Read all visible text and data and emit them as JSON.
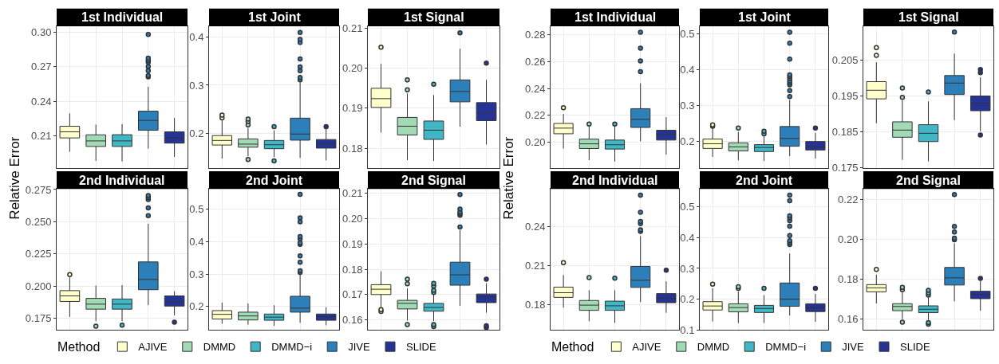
{
  "chart_data": [
    {
      "type": "box",
      "title": "1st Individual",
      "ylabel": "Relative Error",
      "legend_title": "Method",
      "legend": "bottom",
      "grid": true,
      "tick_labels": "y",
      "categories": [
        null,
        null,
        null,
        null,
        null
      ],
      "ylim": [
        0.182,
        0.305
      ],
      "yticks": [
        0.21,
        0.24,
        0.27,
        {
          "value": 0.3,
          "label": "0.30"
        }
      ],
      "series": [
        {
          "name": "AJIVE",
          "color": "#ffffcc",
          "boxes": [
            {
              "low": 0.1962,
              "q1": 0.2082,
              "median": 0.2135,
              "q3": 0.2183,
              "high": 0.2295
            },
            null,
            null,
            null,
            null
          ]
        },
        {
          "name": "DMMD",
          "color": "#a1dab4",
          "boxes": [
            null,
            {
              "low": 0.1883,
              "q1": 0.2008,
              "median": 0.2056,
              "q3": 0.2109,
              "high": 0.2197
            },
            null,
            null,
            null
          ]
        },
        {
          "name": "DMMD−i",
          "color": "#41b6c4",
          "boxes": [
            null,
            null,
            {
              "low": 0.1878,
              "q1": 0.2008,
              "median": 0.2056,
              "q3": 0.211,
              "high": 0.2202
            },
            null,
            null
          ]
        },
        {
          "name": "JIVE",
          "color": "#2c7fb8",
          "boxes": [
            null,
            null,
            null,
            {
              "low": 0.1989,
              "q1": 0.2149,
              "median": 0.2234,
              "q3": 0.2314,
              "high": 0.2526,
              "outliers": [
                0.298,
                0.2774,
                0.2755,
                0.2739,
                0.2702,
                0.2665,
                0.2622,
                0.2612
              ]
            },
            null
          ]
        },
        {
          "name": "SLIDE",
          "color": "#253494",
          "boxes": [
            null,
            null,
            null,
            null,
            {
              "low": 0.1917,
              "q1": 0.2037,
              "median": 0.2082,
              "q3": 0.2135,
              "high": 0.2255
            }
          ]
        }
      ]
    },
    {
      "type": "box",
      "title": "1st Joint",
      "grid": true,
      "tick_labels": "y",
      "categories": [
        null,
        null,
        null,
        null,
        null
      ],
      "ylim": [
        0.128,
        0.422
      ],
      "yticks": [
        0.2,
        0.3,
        0.4
      ],
      "series": [
        {
          "color": "#ffffcc",
          "boxes": [
            {
              "low": 0.148,
              "q1": 0.1759,
              "median": 0.1854,
              "q3": 0.1955,
              "high": 0.227,
              "outliers": [
                0.238,
                0.232
              ]
            },
            null,
            null,
            null,
            null
          ]
        },
        {
          "color": "#a1dab4",
          "boxes": [
            null,
            {
              "low": 0.1524,
              "q1": 0.1714,
              "median": 0.1778,
              "q3": 0.1886,
              "high": 0.2114,
              "outliers": [
                0.2298,
                0.2247,
                0.2178,
                0.146
              ]
            },
            null,
            null,
            null
          ]
        },
        {
          "color": "#41b6c4",
          "boxes": [
            null,
            null,
            {
              "low": 0.1511,
              "q1": 0.1683,
              "median": 0.1765,
              "q3": 0.1854,
              "high": 0.2063,
              "outliers": [
                0.2139,
                0.1428
              ]
            },
            null,
            null
          ]
        },
        {
          "color": "#2c7fb8",
          "boxes": [
            null,
            null,
            null,
            {
              "low": 0.1492,
              "q1": 0.186,
              "median": 0.1987,
              "q3": 0.2317,
              "high": 0.306,
              "outliers": [
                0.4095,
                0.395,
                0.3886,
                0.3543,
                0.3378,
                0.3302,
                0.3162,
                0.3111
              ]
            },
            null
          ]
        },
        {
          "color": "#253494",
          "boxes": [
            null,
            null,
            null,
            null,
            {
              "low": 0.1441,
              "q1": 0.1695,
              "median": 0.179,
              "q3": 0.1873,
              "high": 0.2095,
              "outliers": [
                0.2139
              ]
            }
          ]
        }
      ]
    },
    {
      "type": "box",
      "title": "1st Signal",
      "grid": true,
      "tick_labels": "y",
      "categories": [
        null,
        null,
        null,
        null,
        null
      ],
      "ylim": [
        0.175,
        0.2105
      ],
      "yticks": [
        0.18,
        0.19,
        {
          "value": 0.2,
          "label": "0.20"
        },
        0.21
      ],
      "series": [
        {
          "color": "#ffffcc",
          "boxes": [
            {
              "low": 0.1839,
              "q1": 0.1902,
              "median": 0.1924,
              "q3": 0.195,
              "high": 0.2011,
              "outliers": [
                0.2053
              ]
            },
            null,
            null,
            null,
            null
          ]
        },
        {
          "color": "#a1dab4",
          "boxes": [
            null,
            {
              "low": 0.177,
              "q1": 0.1833,
              "median": 0.1855,
              "q3": 0.1877,
              "high": 0.1937,
              "outliers": [
                0.1971,
                0.1946
              ]
            },
            null,
            null,
            null
          ]
        },
        {
          "color": "#41b6c4",
          "boxes": [
            null,
            null,
            {
              "low": 0.1768,
              "q1": 0.1822,
              "median": 0.1845,
              "q3": 0.1868,
              "high": 0.1933,
              "outliers": [
                0.196
              ]
            },
            null,
            null
          ]
        },
        {
          "color": "#2c7fb8",
          "boxes": [
            null,
            null,
            null,
            {
              "low": 0.1854,
              "q1": 0.1916,
              "median": 0.1942,
              "q3": 0.1971,
              "high": 0.2049,
              "outliers": [
                0.2089
              ]
            },
            null
          ]
        },
        {
          "color": "#253494",
          "boxes": [
            null,
            null,
            null,
            null,
            {
              "low": 0.1809,
              "q1": 0.1869,
              "median": 0.1888,
              "q3": 0.1914,
              "high": 0.1971,
              "outliers": [
                0.2013
              ]
            }
          ]
        }
      ]
    },
    {
      "type": "box",
      "title": "2nd Individual",
      "grid": true,
      "tick_labels": "y",
      "categories": [
        null,
        null,
        null,
        null,
        null
      ],
      "ylim": [
        0.166,
        0.2755
      ],
      "yticks": [
        0.175,
        {
          "value": 0.2,
          "label": "0.200"
        },
        0.225,
        {
          "value": 0.25,
          "label": "0.250"
        },
        0.275
      ],
      "series": [
        {
          "color": "#ffffcc",
          "boxes": [
            {
              "low": 0.1761,
              "q1": 0.1881,
              "median": 0.1924,
              "q3": 0.1965,
              "high": 0.2068,
              "outliers": [
                0.209
              ]
            },
            null,
            null,
            null,
            null
          ]
        },
        {
          "color": "#a1dab4",
          "boxes": [
            null,
            {
              "low": 0.1728,
              "q1": 0.1821,
              "median": 0.186,
              "q3": 0.1905,
              "high": 0.2004,
              "outliers": [
                0.1689
              ]
            },
            null,
            null,
            null
          ]
        },
        {
          "color": "#41b6c4",
          "boxes": [
            null,
            null,
            {
              "low": 0.1728,
              "q1": 0.1821,
              "median": 0.186,
              "q3": 0.19,
              "high": 0.2008,
              "outliers": [
                0.1696
              ]
            },
            null,
            null
          ]
        },
        {
          "color": "#2c7fb8",
          "boxes": [
            null,
            null,
            null,
            {
              "low": 0.1852,
              "q1": 0.1972,
              "median": 0.2052,
              "q3": 0.2188,
              "high": 0.2484,
              "outliers": [
                0.2704,
                0.2688,
                0.2673,
                0.2608,
                0.2548
              ]
            },
            null
          ]
        },
        {
          "color": "#253494",
          "boxes": [
            null,
            null,
            null,
            null,
            {
              "low": 0.1773,
              "q1": 0.1845,
              "median": 0.1876,
              "q3": 0.1924,
              "high": 0.196,
              "outliers": [
                0.172
              ]
            }
          ]
        }
      ]
    },
    {
      "type": "box",
      "title": "2nd Joint",
      "grid": true,
      "tick_labels": "y",
      "categories": [
        null,
        null,
        null,
        null,
        null
      ],
      "ylim": [
        0.128,
        0.562
      ],
      "yticks": [
        0.2,
        0.3,
        0.4,
        0.5
      ],
      "series": [
        {
          "color": "#ffffcc",
          "boxes": [
            {
              "low": 0.1471,
              "q1": 0.1615,
              "median": 0.1759,
              "q3": 0.1874,
              "high": 0.2123
            },
            null,
            null,
            null,
            null
          ]
        },
        {
          "color": "#a1dab4",
          "boxes": [
            null,
            {
              "low": 0.1442,
              "q1": 0.1586,
              "median": 0.171,
              "q3": 0.1826,
              "high": 0.2094
            },
            null,
            null,
            null
          ]
        },
        {
          "color": "#41b6c4",
          "boxes": [
            null,
            null,
            {
              "low": 0.1404,
              "q1": 0.1576,
              "median": 0.1672,
              "q3": 0.1768,
              "high": 0.2037
            },
            null,
            null
          ]
        },
        {
          "color": "#2c7fb8",
          "boxes": [
            null,
            null,
            null,
            {
              "low": 0.15,
              "q1": 0.1826,
              "median": 0.195,
              "q3": 0.2315,
              "high": 0.2977,
              "outliers": [
                0.5451,
                0.4731,
                0.4607,
                0.4156,
                0.4089,
                0.3964,
                0.3916,
                0.3561,
                0.336,
                0.3101,
                0.3053
              ]
            },
            null
          ]
        },
        {
          "color": "#253494",
          "boxes": [
            null,
            null,
            null,
            null,
            {
              "low": 0.1423,
              "q1": 0.1576,
              "median": 0.1682,
              "q3": 0.1768,
              "high": 0.1979
            }
          ]
        }
      ]
    },
    {
      "type": "box",
      "title": "2nd Signal",
      "grid": true,
      "tick_labels": "y",
      "categories": [
        null,
        null,
        null,
        null,
        null
      ],
      "ylim": [
        0.156,
        0.2118
      ],
      "yticks": [
        0.16,
        0.17,
        0.18,
        0.19,
        {
          "value": 0.2,
          "label": "0.20"
        },
        0.21
      ],
      "series": [
        {
          "color": "#ffffcc",
          "boxes": [
            {
              "low": 0.1647,
              "q1": 0.17,
              "median": 0.1721,
              "q3": 0.1739,
              "high": 0.1792,
              "outliers": [
                0.164,
                0.1633
              ]
            },
            null,
            null,
            null,
            null
          ]
        },
        {
          "color": "#a1dab4",
          "boxes": [
            null,
            {
              "low": 0.1597,
              "q1": 0.1643,
              "median": 0.1665,
              "q3": 0.1677,
              "high": 0.1724,
              "outliers": [
                0.1761,
                0.1743,
                0.1581
              ]
            },
            null,
            null,
            null
          ]
        },
        {
          "color": "#41b6c4",
          "boxes": [
            null,
            null,
            {
              "low": 0.1595,
              "q1": 0.1634,
              "median": 0.1649,
              "q3": 0.1665,
              "high": 0.17,
              "outliers": [
                0.1744,
                0.1733,
                0.1717,
                0.1708,
                0.1581,
                0.1573
              ]
            },
            null,
            null
          ]
        },
        {
          "color": "#2c7fb8",
          "boxes": [
            null,
            null,
            null,
            {
              "low": 0.1655,
              "q1": 0.1737,
              "median": 0.1778,
              "q3": 0.1828,
              "high": 0.1955,
              "outliers": [
                0.2096,
                0.2038,
                0.2026,
                0.202,
                0.2014,
                0.1967
              ]
            },
            null
          ]
        },
        {
          "color": "#253494",
          "boxes": [
            null,
            null,
            null,
            null,
            {
              "low": 0.1628,
              "q1": 0.1668,
              "median": 0.169,
              "q3": 0.1702,
              "high": 0.1745,
              "outliers": [
                0.1761,
                0.1576,
                0.1569
              ]
            }
          ]
        }
      ]
    },
    {
      "type": "box",
      "title": "1st Individual",
      "ylabel": "Relative Error",
      "legend_title": "Method",
      "legend": "bottom",
      "grid": true,
      "tick_labels": "y",
      "categories": [
        null,
        null,
        null,
        null,
        null
      ],
      "ylim": [
        0.1807,
        0.2863
      ],
      "yticks": [
        {
          "value": 0.2,
          "label": "0.20"
        },
        0.22,
        0.24,
        0.26,
        0.28
      ],
      "series": [
        {
          "name": "AJIVE",
          "color": "#ffffcc",
          "boxes": [
            {
              "low": 0.1953,
              "q1": 0.2063,
              "median": 0.2105,
              "q3": 0.214,
              "high": 0.221,
              "outliers": [
                0.2257
              ]
            },
            null,
            null,
            null,
            null
          ]
        },
        {
          "name": "DMMD",
          "color": "#a1dab4",
          "boxes": [
            null,
            {
              "low": 0.1867,
              "q1": 0.1953,
              "median": 0.1988,
              "q3": 0.2023,
              "high": 0.2117,
              "outliers": [
                0.2135
              ]
            },
            null,
            null,
            null
          ]
        },
        {
          "name": "DMMD−i",
          "color": "#41b6c4",
          "boxes": [
            null,
            null,
            {
              "low": 0.1856,
              "q1": 0.1949,
              "median": 0.1981,
              "q3": 0.2016,
              "high": 0.2117,
              "outliers": [
                0.2135
              ]
            },
            null,
            null
          ]
        },
        {
          "name": "JIVE",
          "color": "#2c7fb8",
          "boxes": [
            null,
            null,
            null,
            {
              "low": 0.2007,
              "q1": 0.211,
              "median": 0.217,
              "q3": 0.225,
              "high": 0.2439,
              "outliers": [
                0.2819,
                0.27,
                0.2606,
                0.2525
              ]
            },
            null
          ]
        },
        {
          "name": "SLIDE",
          "color": "#253494",
          "boxes": [
            null,
            null,
            null,
            null,
            {
              "low": 0.1907,
              "q1": 0.2016,
              "median": 0.2058,
              "q3": 0.2089,
              "high": 0.2187
            }
          ]
        }
      ]
    },
    {
      "type": "box",
      "title": "1st Joint",
      "grid": true,
      "tick_labels": "y",
      "categories": [
        null,
        null,
        null,
        null,
        null
      ],
      "ylim": [
        0.126,
        0.52
      ],
      "yticks": [
        0.2,
        0.3,
        0.4,
        0.5
      ],
      "series": [
        {
          "color": "#ffffcc",
          "boxes": [
            {
              "low": 0.1572,
              "q1": 0.1807,
              "median": 0.1938,
              "q3": 0.2068,
              "high": 0.2416,
              "outliers": [
                0.246,
                0.2425
              ]
            },
            null,
            null,
            null,
            null
          ]
        },
        {
          "color": "#a1dab4",
          "boxes": [
            null,
            {
              "low": 0.1477,
              "q1": 0.1738,
              "median": 0.1851,
              "q3": 0.1964,
              "high": 0.2268,
              "outliers": [
                0.2373
              ]
            },
            null,
            null,
            null
          ]
        },
        {
          "color": "#41b6c4",
          "boxes": [
            null,
            null,
            {
              "low": 0.1459,
              "q1": 0.172,
              "median": 0.1833,
              "q3": 0.1912,
              "high": 0.2173,
              "outliers": [
                0.2286,
                0.2216
              ]
            },
            null,
            null
          ]
        },
        {
          "color": "#2c7fb8",
          "boxes": [
            null,
            null,
            null,
            {
              "low": 0.159,
              "q1": 0.1868,
              "median": 0.2086,
              "q3": 0.2416,
              "high": 0.3156,
              "outliers": [
                0.5035,
                0.473,
                0.4287,
                0.3852,
                0.3808,
                0.3747,
                0.3678,
                0.3625,
                0.3573,
                0.3417,
                0.3251
              ]
            },
            null
          ]
        },
        {
          "color": "#253494",
          "boxes": [
            null,
            null,
            null,
            null,
            {
              "low": 0.1529,
              "q1": 0.1764,
              "median": 0.1851,
              "q3": 0.1999,
              "high": 0.2243,
              "outliers": [
                0.2373
              ]
            }
          ]
        }
      ]
    },
    {
      "type": "box",
      "title": "1st Signal",
      "grid": true,
      "tick_labels": "y",
      "categories": [
        null,
        null,
        null,
        null,
        null
      ],
      "ylim": [
        0.1748,
        0.2143
      ],
      "yticks": [
        0.175,
        0.185,
        0.195,
        0.205
      ],
      "series": [
        {
          "color": "#ffffcc",
          "boxes": [
            {
              "low": 0.1873,
              "q1": 0.1941,
              "median": 0.1965,
              "q3": 0.1989,
              "high": 0.2043,
              "outliers": [
                0.2084,
                0.2062
              ]
            },
            null,
            null,
            null,
            null
          ]
        },
        {
          "color": "#a1dab4",
          "boxes": [
            null,
            {
              "low": 0.1771,
              "q1": 0.1834,
              "median": 0.1854,
              "q3": 0.1877,
              "high": 0.1937,
              "outliers": [
                0.1971,
                0.1945
              ]
            },
            null,
            null,
            null
          ]
        },
        {
          "color": "#41b6c4",
          "boxes": [
            null,
            null,
            {
              "low": 0.1767,
              "q1": 0.1822,
              "median": 0.1845,
              "q3": 0.1869,
              "high": 0.1934,
              "outliers": [
                0.196
              ]
            },
            null,
            null
          ]
        },
        {
          "color": "#2c7fb8",
          "boxes": [
            null,
            null,
            null,
            {
              "low": 0.1882,
              "q1": 0.1953,
              "median": 0.1985,
              "q3": 0.2006,
              "high": 0.2067,
              "outliers": [
                0.2127
              ]
            },
            null
          ]
        },
        {
          "color": "#253494",
          "boxes": [
            null,
            null,
            null,
            null,
            {
              "low": 0.1851,
              "q1": 0.1908,
              "median": 0.1928,
              "q3": 0.1949,
              "high": 0.2001,
              "outliers": [
                0.2023,
                0.2014,
                0.184
              ]
            }
          ]
        }
      ]
    },
    {
      "type": "box",
      "title": "2nd Individual",
      "grid": true,
      "tick_labels": "y",
      "categories": [
        null,
        null,
        null,
        null,
        null
      ],
      "ylim": [
        0.1604,
        0.2692
      ],
      "yticks": [
        0.18,
        0.21,
        0.24
      ],
      "series": [
        {
          "color": "#ffffcc",
          "boxes": [
            {
              "low": 0.1776,
              "q1": 0.1855,
              "median": 0.1891,
              "q3": 0.1934,
              "high": 0.2027,
              "outliers": [
                0.2123
              ]
            },
            null,
            null,
            null,
            null
          ]
        },
        {
          "color": "#a1dab4",
          "boxes": [
            null,
            {
              "low": 0.1671,
              "q1": 0.1755,
              "median": 0.1795,
              "q3": 0.1831,
              "high": 0.191,
              "outliers": [
                0.2008
              ]
            },
            null,
            null,
            null
          ]
        },
        {
          "color": "#41b6c4",
          "boxes": [
            null,
            null,
            {
              "low": 0.1659,
              "q1": 0.1755,
              "median": 0.179,
              "q3": 0.1826,
              "high": 0.191,
              "outliers": [
                0.2003
              ]
            },
            null,
            null
          ]
        },
        {
          "color": "#2c7fb8",
          "boxes": [
            null,
            null,
            null,
            {
              "low": 0.1819,
              "q1": 0.1932,
              "median": 0.1987,
              "q3": 0.2094,
              "high": 0.2328,
              "outliers": [
                0.2644,
                0.2512,
                0.2441,
                0.2424,
                0.2376,
                0.2364
              ]
            },
            null
          ]
        },
        {
          "color": "#253494",
          "boxes": [
            null,
            null,
            null,
            null,
            {
              "low": 0.1736,
              "q1": 0.1814,
              "median": 0.1848,
              "q3": 0.1884,
              "high": 0.1979,
              "outliers": [
                0.2065
              ]
            }
          ]
        }
      ]
    },
    {
      "type": "box",
      "title": "2nd Joint",
      "grid": true,
      "tick_labels": "y",
      "categories": [
        null,
        null,
        null,
        null,
        null
      ],
      "ylim": [
        0.1,
        0.5586
      ],
      "yticks": [
        0.1,
        0.2,
        0.3,
        0.4,
        0.5
      ],
      "series": [
        {
          "color": "#ffffcc",
          "boxes": [
            {
              "low": 0.1273,
              "q1": 0.1647,
              "median": 0.1778,
              "q3": 0.1919,
              "high": 0.2354,
              "outliers": [
                0.2485
              ]
            },
            null,
            null,
            null,
            null
          ]
        },
        {
          "color": "#a1dab4",
          "boxes": [
            null,
            {
              "low": 0.1223,
              "q1": 0.1586,
              "median": 0.1727,
              "q3": 0.1849,
              "high": 0.2253,
              "outliers": [
                0.2404,
                0.2354
              ]
            },
            null,
            null,
            null
          ]
        },
        {
          "color": "#41b6c4",
          "boxes": [
            null,
            null,
            {
              "low": 0.1223,
              "q1": 0.1566,
              "median": 0.1697,
              "q3": 0.1798,
              "high": 0.2132,
              "outliers": [
                0.2354
              ]
            },
            null,
            null
          ]
        },
        {
          "color": "#2c7fb8",
          "boxes": [
            null,
            null,
            null,
            {
              "low": 0.1465,
              "q1": 0.1768,
              "median": 0.2,
              "q3": 0.2526,
              "high": 0.3485,
              "outliers": [
                0.5384,
                0.5202,
                0.4707,
                0.4646,
                0.4556,
                0.4374,
                0.4071,
                0.3899,
                0.3839,
                0.3778
              ]
            },
            null
          ]
        },
        {
          "color": "#253494",
          "boxes": [
            null,
            null,
            null,
            null,
            {
              "low": 0.1263,
              "q1": 0.1596,
              "median": 0.1727,
              "q3": 0.1849,
              "high": 0.2172,
              "outliers": [
                0.2354
              ]
            }
          ]
        }
      ]
    },
    {
      "type": "box",
      "title": "2nd Signal",
      "grid": true,
      "tick_labels": "y",
      "categories": [
        null,
        null,
        null,
        null,
        null
      ],
      "ylim": [
        0.1547,
        0.2251
      ],
      "yticks": [
        0.16,
        0.18,
        {
          "value": 0.2,
          "label": "0.20"
        },
        0.22
      ],
      "series": [
        {
          "color": "#ffffcc",
          "boxes": [
            {
              "low": 0.1679,
              "q1": 0.1737,
              "median": 0.1757,
              "q3": 0.1773,
              "high": 0.1823,
              "outliers": [
                0.1849
              ]
            },
            null,
            null,
            null,
            null
          ]
        },
        {
          "color": "#a1dab4",
          "boxes": [
            null,
            {
              "low": 0.1601,
              "q1": 0.1643,
              "median": 0.1664,
              "q3": 0.1678,
              "high": 0.1734,
              "outliers": [
                0.176,
                0.1748,
                0.1586
              ]
            },
            null,
            null,
            null
          ]
        },
        {
          "color": "#41b6c4",
          "boxes": [
            null,
            null,
            {
              "low": 0.1597,
              "q1": 0.1633,
              "median": 0.165,
              "q3": 0.1667,
              "high": 0.1714,
              "outliers": [
                0.1745,
                0.1732,
                0.1721,
                0.1584,
                0.1576
              ]
            },
            null,
            null
          ]
        },
        {
          "color": "#2c7fb8",
          "boxes": [
            null,
            null,
            null,
            {
              "low": 0.169,
              "q1": 0.1771,
              "median": 0.1807,
              "q3": 0.1859,
              "high": 0.1979,
              "outliers": [
                0.2223,
                0.2064,
                0.2036,
                0.2005,
                0.1997
              ]
            },
            null
          ]
        },
        {
          "color": "#253494",
          "boxes": [
            null,
            null,
            null,
            null,
            {
              "low": 0.1643,
              "q1": 0.1703,
              "median": 0.1724,
              "q3": 0.174,
              "high": 0.1792,
              "outliers": [
                0.1804
              ]
            }
          ]
        }
      ]
    }
  ]
}
